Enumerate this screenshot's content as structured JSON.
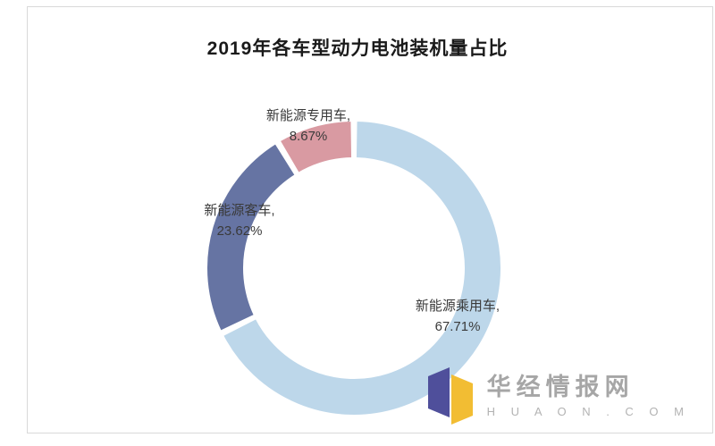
{
  "title": "2019年各车型动力电池装机量占比",
  "chart_data": {
    "type": "pie",
    "donut": true,
    "title": "2019年各车型动力电池装机量占比",
    "categories": [
      "新能源乘用车",
      "新能源客车",
      "新能源专用车"
    ],
    "values": [
      67.71,
      23.62,
      8.67
    ],
    "unit": "%",
    "start_angle_deg": 0,
    "direction": "clockwise",
    "legend_position": "none",
    "grid": false,
    "segments": [
      {
        "label": "新能源乘用车",
        "value": 67.71,
        "display": "新能源乘用车,",
        "pct_text": "67.71%",
        "color": "#bdd7ea"
      },
      {
        "label": "新能源客车",
        "value": 23.62,
        "display": "新能源客车,",
        "pct_text": "23.62%",
        "color": "#6674a3"
      },
      {
        "label": "新能源专用车",
        "value": 8.67,
        "display": "新能源专用车,",
        "pct_text": "8.67%",
        "color": "#d99aa2"
      }
    ]
  },
  "watermark": {
    "brand": "华经情报网",
    "domain": "H U A O N . C O M",
    "logo_left_color": "#4f4f9b",
    "logo_right_color": "#f2bd33"
  }
}
